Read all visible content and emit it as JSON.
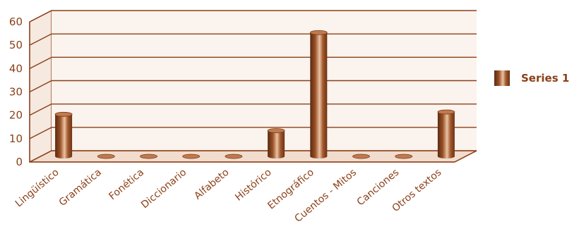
{
  "chart_data": {
    "type": "bar",
    "categories": [
      "Lingüístico",
      "Gramática",
      "Fonética",
      "Diccionario",
      "Alfabeto",
      "Histórico",
      "Etnográfico",
      "Cuentos - Mitos",
      "Canciones",
      "Otros textos"
    ],
    "series": [
      {
        "name": "Series 1",
        "values": [
          18,
          0,
          0,
          0,
          0,
          11,
          53,
          0,
          0,
          19
        ]
      }
    ],
    "yticks": [
      0,
      10,
      20,
      30,
      40,
      50,
      60
    ],
    "ylim": [
      0,
      60
    ],
    "grid": true,
    "legend_position": "right",
    "colors": {
      "bar_dark": "#5a2a10",
      "bar_mid": "#9a5026",
      "bar_light": "#e9c3a4",
      "grid": "#8b3f18",
      "wall": "#f6e9df",
      "floor": "#f1dccd",
      "text": "#8b3f18"
    }
  }
}
